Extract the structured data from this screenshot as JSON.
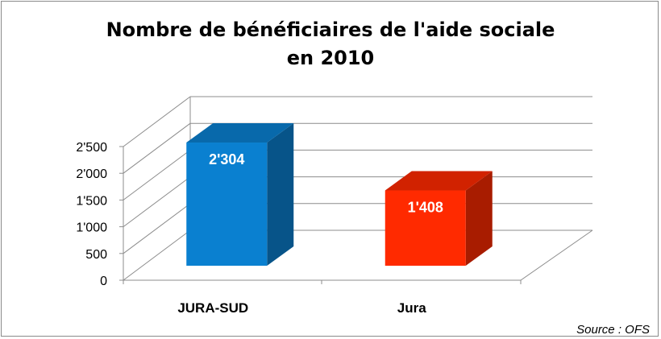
{
  "chart_data": {
    "type": "bar",
    "title_lines": [
      "Nombre de bénéficiaires de l'aide sociale",
      "en 2010"
    ],
    "categories": [
      "JURA-SUD",
      "Jura"
    ],
    "values": [
      2304,
      1408
    ],
    "value_labels": [
      "2'304",
      "1'408"
    ],
    "colors": [
      "#0a80d0",
      "#ff2a00"
    ],
    "ylim": [
      0,
      2500
    ],
    "yticks": [
      0,
      500,
      1000,
      1500,
      2000,
      2500
    ],
    "ytick_labels": [
      "0",
      "500",
      "1'000",
      "1'500",
      "2'000",
      "2'500"
    ],
    "grid": true,
    "style": "3d-column",
    "xlabel": "",
    "ylabel": ""
  },
  "source": "Source : OFS"
}
